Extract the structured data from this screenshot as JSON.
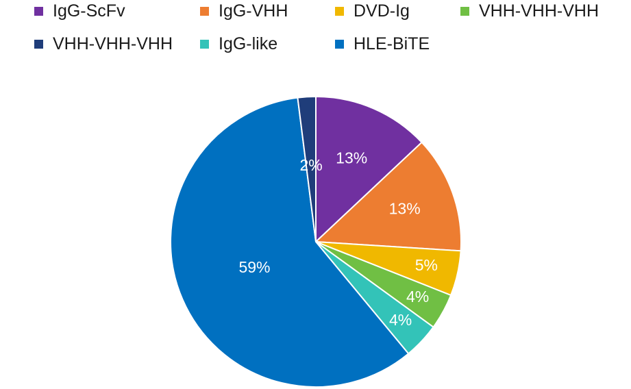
{
  "chart_data": {
    "type": "pie",
    "categories": [
      "IgG-ScFv",
      "IgG-VHH",
      "DVD-Ig",
      "VHH-VHH-VHH",
      "VHH-VHH-VHH",
      "IgG-like",
      "HLE-BiTE"
    ],
    "values": [
      13,
      13,
      5,
      4,
      2,
      4,
      59
    ],
    "labels": [
      "13%",
      "13%",
      "5%",
      "4%",
      "2%",
      "4%",
      "59%"
    ],
    "colors": [
      "#7030A0",
      "#ED7D31",
      "#F0B800",
      "#70BF44",
      "#1F3D7A",
      "#33C3B8",
      "#0070C0"
    ],
    "legend": "top",
    "slice_order": [
      "IgG-ScFv",
      "IgG-VHH",
      "DVD-Ig",
      "VHH-VHH-VHH (green)",
      "IgG-like",
      "HLE-BiTE",
      "VHH-VHH-VHH (navy)"
    ]
  }
}
